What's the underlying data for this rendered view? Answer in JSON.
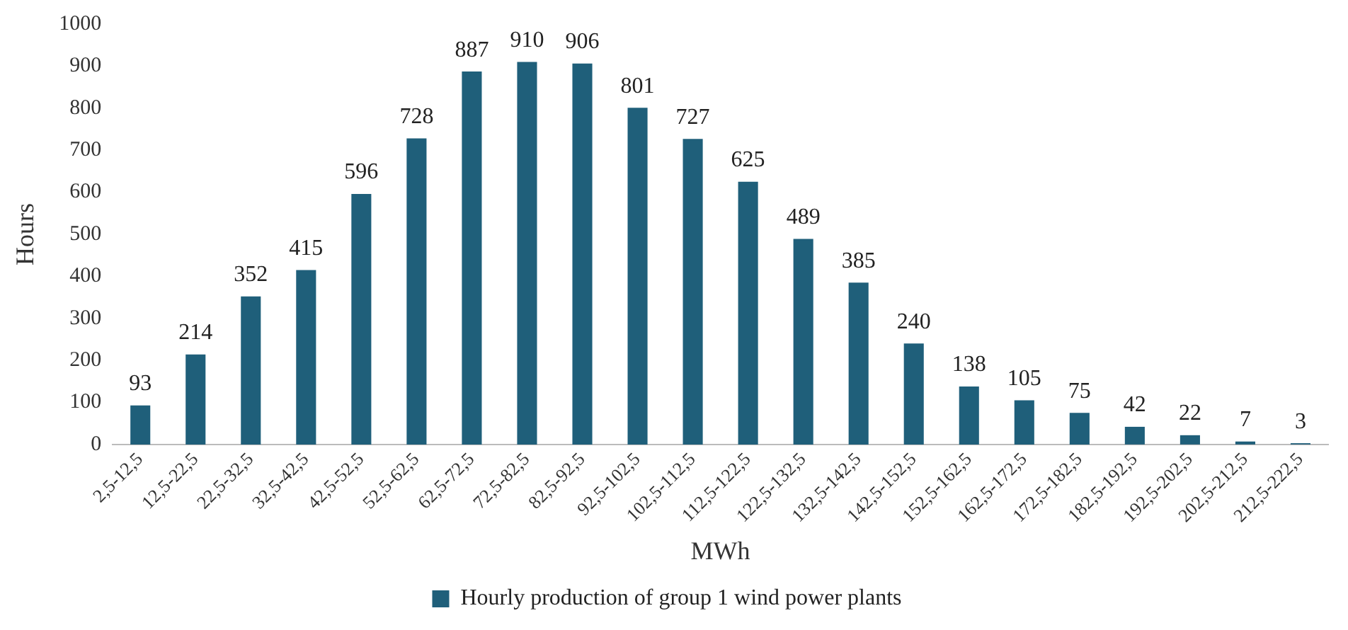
{
  "chart_data": {
    "type": "bar",
    "xlabel": "MWh",
    "ylabel": "Hours",
    "categories": [
      "2,5-12,5",
      "12,5-22,5",
      "22,5-32,5",
      "32,5-42,5",
      "42,5-52,5",
      "52,5-62,5",
      "62,5-72,5",
      "72,5-82,5",
      "82,5-92,5",
      "92,5-102,5",
      "102,5-112,5",
      "112,5-122,5",
      "122,5-132,5",
      "132,5-142,5",
      "142,5-152,5",
      "152,5-162,5",
      "162,5-172,5",
      "172,5-182,5",
      "182,5-192,5",
      "192,5-202,5",
      "202,5-212,5",
      "212,5-222,5"
    ],
    "series": [
      {
        "name": "Hourly production of group 1 wind power plants",
        "color": "#1f5f7a",
        "values": [
          93,
          214,
          352,
          415,
          596,
          728,
          887,
          910,
          906,
          801,
          727,
          625,
          489,
          385,
          240,
          138,
          105,
          75,
          42,
          22,
          7,
          3
        ]
      }
    ],
    "ylim": [
      0,
      1000
    ],
    "yticks": [
      0,
      100,
      200,
      300,
      400,
      500,
      600,
      700,
      800,
      900,
      1000
    ],
    "data_labels": true,
    "legend": "bottom",
    "grid": false
  }
}
